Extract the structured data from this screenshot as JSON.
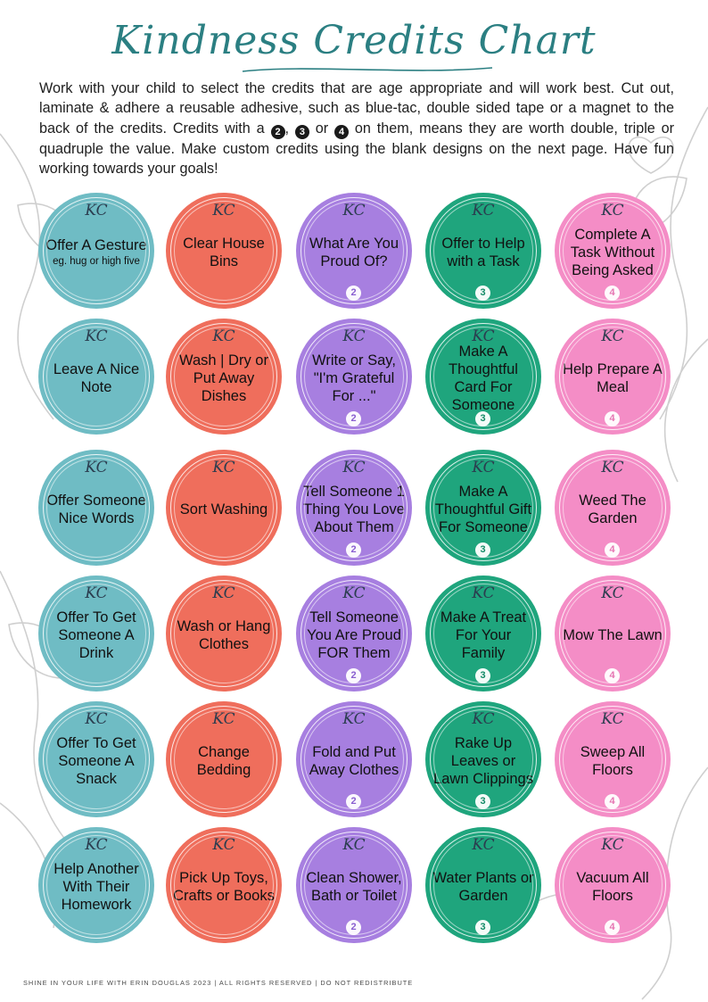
{
  "title": "Kindness Credits Chart",
  "intro": "Work with your child to select the credits that are age appropriate and will work best. Cut out, laminate & adhere a reusable adhesive, such as blue-tac, double sided tape or a magnet to the back of the credits. Credits with a",
  "intro_badges": [
    "2",
    "3",
    "4"
  ],
  "intro_sep1": ",",
  "intro_sep2": "or",
  "intro_end": "on them, means they are worth double, triple or quadruple the value. Make custom credits using the blank designs on the next page. Have fun working towards your goals!",
  "kc_mark": "KC",
  "colors": {
    "teal": "#6fbcc4",
    "coral": "#ef6e5c",
    "purple": "#a77fe0",
    "green": "#1fa57d",
    "pink": "#f48dc6",
    "title": "#2b7f82"
  },
  "credits": [
    [
      {
        "text": "Offer A Gesture",
        "sub": "eg. hug or high five",
        "value": ""
      },
      {
        "text": "Clear House Bins",
        "value": ""
      },
      {
        "text": "What Are You Proud Of?",
        "value": "2"
      },
      {
        "text": "Offer to Help with a Task",
        "value": "3"
      },
      {
        "text": "Complete A Task Without Being Asked",
        "value": "4"
      }
    ],
    [
      {
        "text": "Leave A Nice Note",
        "value": ""
      },
      {
        "text": "Wash | Dry or Put Away Dishes",
        "value": ""
      },
      {
        "text": "Write or Say, \"I'm Grateful For ...\"",
        "value": "2"
      },
      {
        "text": "Make A Thoughtful Card For Someone",
        "value": "3"
      },
      {
        "text": "Help Prepare A Meal",
        "value": "4"
      }
    ],
    [
      {
        "text": "Offer Someone Nice Words",
        "value": ""
      },
      {
        "text": "Sort Washing",
        "value": ""
      },
      {
        "text": "Tell Someone 1 Thing You Love About Them",
        "value": "2"
      },
      {
        "text": "Make A Thoughtful Gift For Someone",
        "value": "3"
      },
      {
        "text": "Weed The Garden",
        "value": "4"
      }
    ],
    [
      {
        "text": "Offer To Get Someone A Drink",
        "value": ""
      },
      {
        "text": "Wash or Hang Clothes",
        "value": ""
      },
      {
        "text": "Tell Someone You Are Proud FOR Them",
        "value": "2"
      },
      {
        "text": "Make A Treat For Your Family",
        "value": "3"
      },
      {
        "text": "Mow The Lawn",
        "value": "4"
      }
    ],
    [
      {
        "text": "Offer To Get Someone A Snack",
        "value": ""
      },
      {
        "text": "Change Bedding",
        "value": ""
      },
      {
        "text": "Fold and Put Away Clothes",
        "value": "2"
      },
      {
        "text": "Rake Up Leaves or Lawn Clippings",
        "value": "3"
      },
      {
        "text": "Sweep All Floors",
        "value": "4"
      }
    ],
    [
      {
        "text": "Help Another With Their Homework",
        "value": ""
      },
      {
        "text": "Pick Up Toys, Crafts or Books",
        "value": ""
      },
      {
        "text": "Clean Shower, Bath or Toilet",
        "value": "2"
      },
      {
        "text": "Water Plants or Garden",
        "value": "3"
      },
      {
        "text": "Vacuum All Floors",
        "value": "4"
      }
    ]
  ],
  "footer": "SHINE IN YOUR LIFE WITH ERIN DOUGLAS 2023 | ALL RIGHTS RESERVED | DO NOT REDISTRIBUTE"
}
